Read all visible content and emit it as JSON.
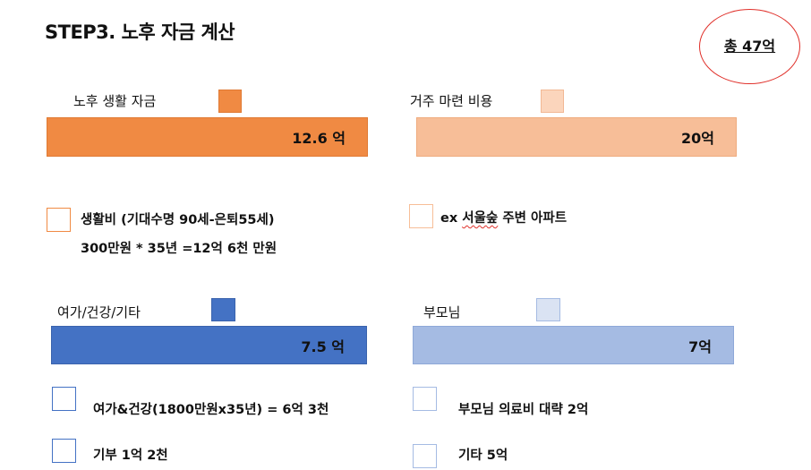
{
  "title": "STEP3. 노후 자금 계산",
  "total": "총 47억",
  "colors": {
    "orange": "#f08a43",
    "peach_bar": "#f7be98",
    "peach_swatch": "#fbd5bc",
    "blue": "#4472c4",
    "light_blue_bar": "#a5bbe3",
    "light_blue_swatch": "#dae3f3",
    "circle": "#e0302a"
  },
  "sections": {
    "living": {
      "label": "노후 생활 자금",
      "value": "12.6 억",
      "notes": [
        "생활비 (기대수명 90세-은퇴55세)",
        "300만원 * 35년 =12억 6천 만원"
      ]
    },
    "housing": {
      "label": "거주 마련 비용",
      "value": "20억",
      "note_prefix": "ex ",
      "note_squiggle": "서울숲",
      "note_suffix": " 주변 아파트"
    },
    "leisure": {
      "label": "여가/건강/기타",
      "value": "7.5 억",
      "notes": [
        "여가&건강(1800만원x35년) = 6억 3천",
        "기부 1억 2천"
      ]
    },
    "parents": {
      "label": "부모님",
      "value": "7억",
      "notes": [
        "부모님 의료비 대략 2억",
        "기타 5억"
      ]
    }
  }
}
